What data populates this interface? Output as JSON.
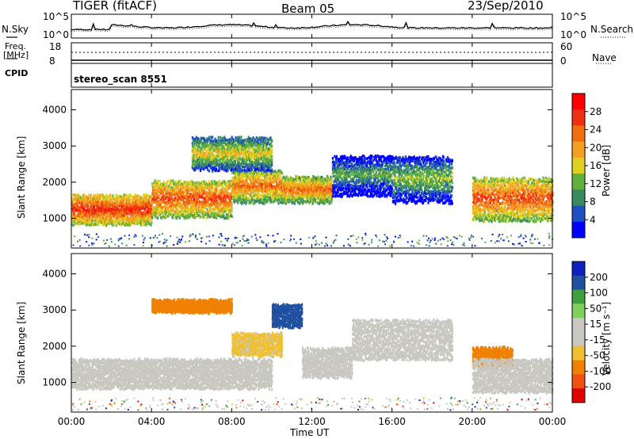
{
  "header": {
    "radar": "TIGER (fitACF)",
    "beam": "Beam 05",
    "date": "23/Sep/2010"
  },
  "top_panels": {
    "nsky_label": "N.Sky",
    "nsky_ticks": [
      "10^5",
      "10^0"
    ],
    "nsearch_label": "N.Search",
    "nsearch_ticks": [
      "10^5",
      "10^0"
    ],
    "freq_label": "Freq.",
    "freq_unit": "[MHz]",
    "freq_ticks": [
      "18",
      "8"
    ],
    "nave_label": "Nave",
    "nave_ticks": [
      "60",
      "0"
    ],
    "cpid_label": "CPID",
    "cpid_value": "stereo_scan 8551"
  },
  "chart_data": [
    {
      "type": "heatmap",
      "name": "power",
      "ylabel": "Slant Range [km]",
      "yticks": [
        "4000",
        "3000",
        "2000",
        "1000"
      ],
      "ylim": [
        180,
        4560
      ],
      "colorbar_label": "Power [dB]",
      "colorbar_ticks": [
        "28",
        "24",
        "20",
        "16",
        "12",
        "8",
        "4"
      ],
      "colorbar_range": [
        0,
        32
      ],
      "colors": [
        "#0000ff",
        "#2050c0",
        "#3a8a60",
        "#60b040",
        "#e0d020",
        "#f4a020",
        "#f07010",
        "#f03010",
        "#ff0000"
      ],
      "bands": [
        {
          "t_start": 0,
          "t_end": 4,
          "r_low": 900,
          "r_high": 1700,
          "level": 28
        },
        {
          "t_start": 4,
          "t_end": 8,
          "r_low": 1100,
          "r_high": 2100,
          "level": 26
        },
        {
          "t_start": 8,
          "t_end": 10.5,
          "r_low": 1500,
          "r_high": 2400,
          "level": 24
        },
        {
          "t_start": 6,
          "t_end": 10,
          "r_low": 2400,
          "r_high": 3300,
          "level": 18
        },
        {
          "t_start": 10.5,
          "t_end": 13,
          "r_low": 1500,
          "r_high": 2200,
          "level": 24
        },
        {
          "t_start": 13,
          "t_end": 16,
          "r_low": 1700,
          "r_high": 2800,
          "level": 12
        },
        {
          "t_start": 16,
          "t_end": 19,
          "r_low": 1500,
          "r_high": 2800,
          "level": 14
        },
        {
          "t_start": 20,
          "t_end": 24,
          "r_low": 1000,
          "r_high": 2200,
          "level": 26
        }
      ]
    },
    {
      "type": "heatmap",
      "name": "velocity",
      "ylabel": "Slant Range [km]",
      "yticks": [
        "4000",
        "3000",
        "2000",
        "1000"
      ],
      "ylim": [
        180,
        4560
      ],
      "colorbar_label": "Velocity [m s⁻¹]",
      "colorbar_ticks": [
        "200",
        "100",
        "50",
        "15",
        "-15",
        "-50",
        "-100",
        "-200"
      ],
      "colorbar_range": [
        -250,
        250
      ],
      "colors": [
        "#e00000",
        "#f05010",
        "#f08000",
        "#f0c030",
        "#c8c8c0",
        "#c8c8c0",
        "#80d060",
        "#40a040",
        "#2050a0",
        "#1020c0"
      ],
      "bands": [
        {
          "t_start": 0,
          "t_end": 10,
          "r_low": 900,
          "r_high": 1700,
          "level": 0
        },
        {
          "t_start": 4,
          "t_end": 8,
          "r_low": 3000,
          "r_high": 3300,
          "level": -120
        },
        {
          "t_start": 8,
          "t_end": 10.5,
          "r_low": 1800,
          "r_high": 2400,
          "level": -60
        },
        {
          "t_start": 10,
          "t_end": 11.5,
          "r_low": 2600,
          "r_high": 3200,
          "level": 180
        },
        {
          "t_start": 11.5,
          "t_end": 14,
          "r_low": 1200,
          "r_high": 2000,
          "level": 0
        },
        {
          "t_start": 14,
          "t_end": 19,
          "r_low": 1700,
          "r_high": 2800,
          "level": 0
        },
        {
          "t_start": 20,
          "t_end": 22,
          "r_low": 1500,
          "r_high": 2000,
          "level": -120
        },
        {
          "t_start": 20,
          "t_end": 24,
          "r_low": 800,
          "r_high": 1700,
          "level": 0
        }
      ]
    }
  ],
  "xaxis": {
    "label": "Time UT",
    "ticks": [
      "00:00",
      "04:00",
      "08:00",
      "12:00",
      "16:00",
      "20:00",
      "00:00"
    ],
    "range_hours": [
      0,
      24
    ]
  }
}
